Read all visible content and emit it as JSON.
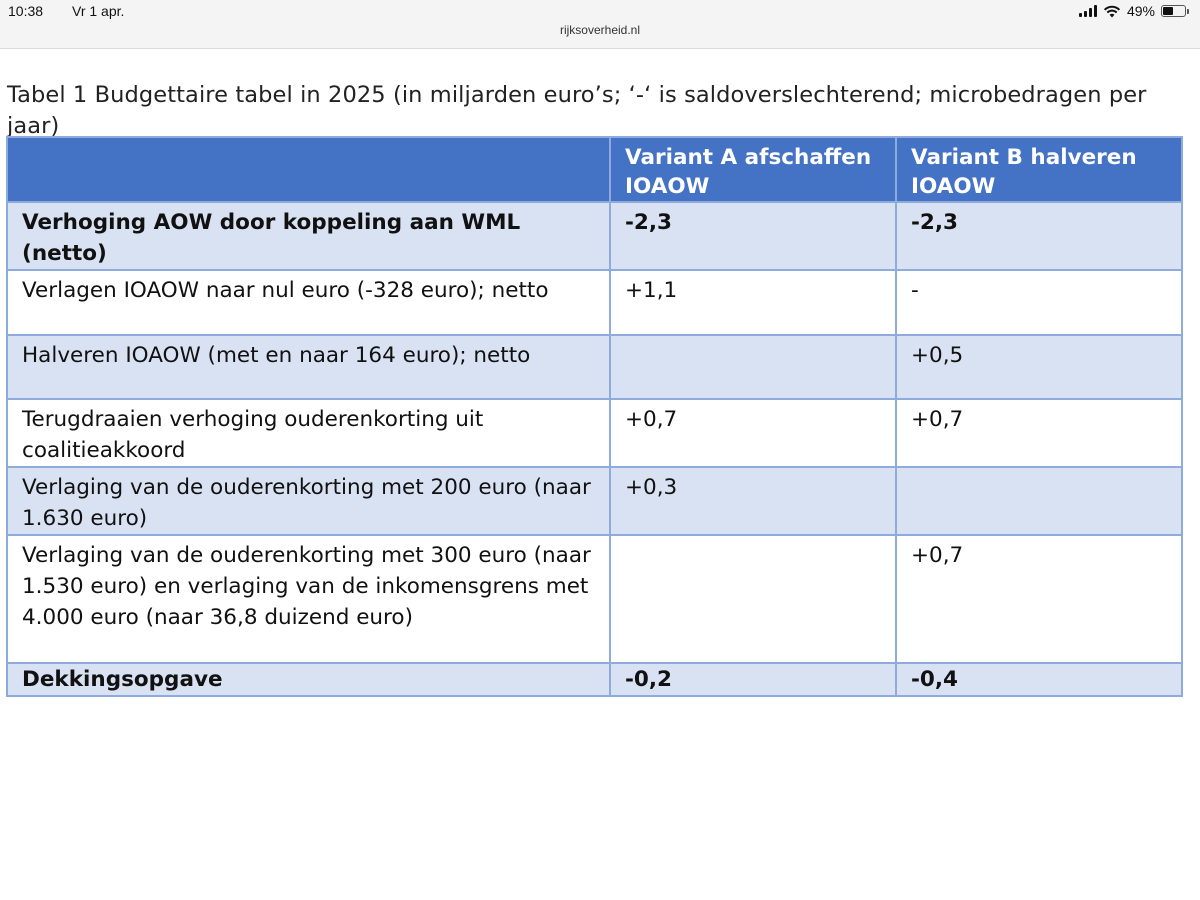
{
  "status_bar": {
    "time": "10:38",
    "date": "Vr 1 apr.",
    "url": "rijksoverheid.nl",
    "battery_percent": "49%",
    "battery_level": 0.49,
    "signal_bars": 4
  },
  "caption": "Tabel 1 Budgettaire tabel in 2025 (in miljarden euro’s; ‘-‘ is saldoverslechterend; microbedragen per jaar)",
  "table": {
    "headers": [
      "",
      "Variant A afschaffen IOAOW",
      "Variant B halveren IOAOW"
    ],
    "rows": [
      {
        "label": "Verhoging AOW door koppeling aan WML (netto)",
        "a": "-2,3",
        "b": "-2,3",
        "bold": true
      },
      {
        "label": "Verlagen IOAOW naar nul euro (-328 euro); netto",
        "a": "+1,1",
        "b": "-",
        "bold": false
      },
      {
        "label": "Halveren IOAOW (met en naar 164 euro); netto",
        "a": "",
        "b": "+0,5",
        "bold": false
      },
      {
        "label": "Terugdraaien verhoging ouderenkorting uit coalitieakkoord",
        "a": "+0,7",
        "b": "+0,7",
        "bold": false
      },
      {
        "label": "Verlaging van de ouderenkorting met 200 euro (naar 1.630 euro)",
        "a": "+0,3",
        "b": "",
        "bold": false
      },
      {
        "label": "Verlaging van de ouderenkorting met 300 euro (naar 1.530 euro) en verlaging van de inkomensgrens met 4.000 euro (naar 36,8 duizend  euro)",
        "a": "",
        "b": "+0,7",
        "bold": false
      },
      {
        "label": "Dekkingsopgave",
        "a": "-0,2",
        "b": "-0,4",
        "bold": true
      }
    ]
  }
}
